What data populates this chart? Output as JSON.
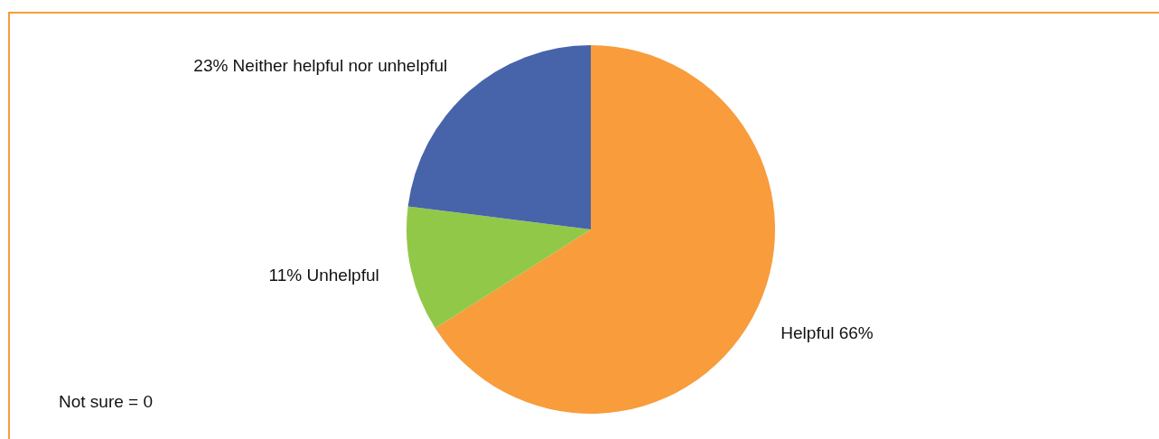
{
  "chart_data": {
    "type": "pie",
    "categories": [
      "Helpful",
      "Unhelpful",
      "Neither helpful nor unhelpful"
    ],
    "values": [
      66,
      11,
      23
    ],
    "colors": [
      "#f89c3c",
      "#92c848",
      "#4763aa"
    ],
    "value_labels": [
      "66%",
      "11%",
      "23%"
    ],
    "annotations": [
      "Not sure = 0"
    ]
  }
}
